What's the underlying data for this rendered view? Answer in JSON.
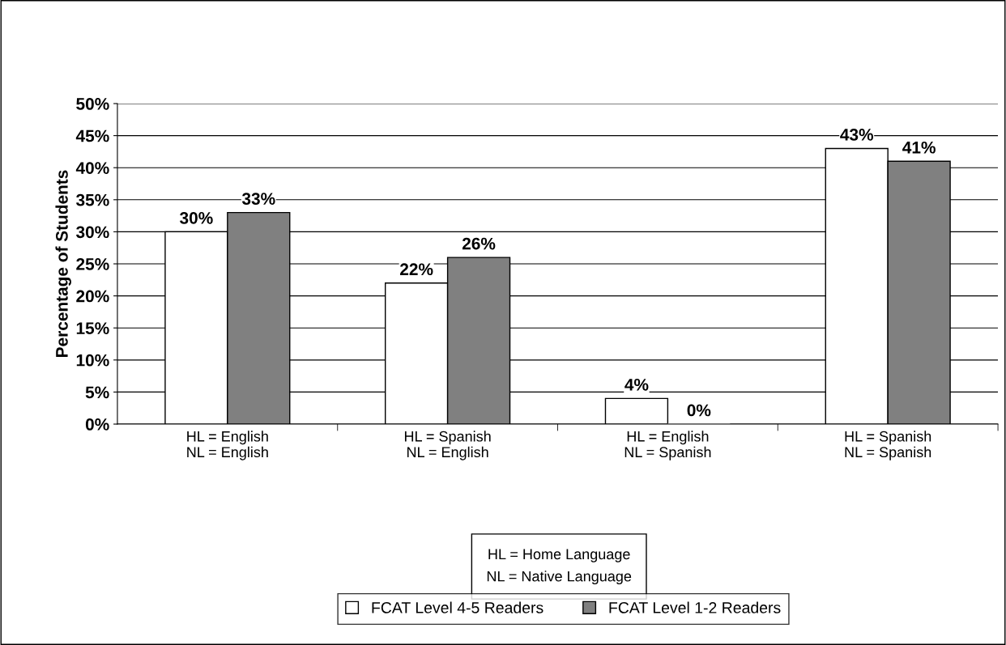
{
  "chart_data": {
    "type": "bar",
    "ylabel": "Percentage of Students",
    "categories": [
      "HL = English\nNL = English",
      "HL = Spanish\nNL = English",
      "HL = English\nNL = Spanish",
      "HL = Spanish\nNL = Spanish"
    ],
    "series": [
      {
        "name": "FCAT Level 4-5 Readers",
        "color": "#ffffff",
        "values": [
          30,
          22,
          4,
          43
        ]
      },
      {
        "name": "FCAT Level 1-2 Readers",
        "color": "#808080",
        "values": [
          33,
          26,
          0,
          41
        ]
      }
    ],
    "ylim": [
      0,
      50
    ],
    "yticks": [
      {
        "value": 0,
        "label": "0%"
      },
      {
        "value": 5,
        "label": "5%"
      },
      {
        "value": 10,
        "label": "10%"
      },
      {
        "value": 15,
        "label": "15%"
      },
      {
        "value": 20,
        "label": "20%"
      },
      {
        "value": 25,
        "label": "25%"
      },
      {
        "value": 30,
        "label": "30%"
      },
      {
        "value": 35,
        "label": "35%"
      },
      {
        "value": 40,
        "label": "40%"
      },
      {
        "value": 45,
        "label": "45%"
      },
      {
        "value": 50,
        "label": "50%"
      }
    ],
    "value_labels": [
      [
        "30%",
        "22%",
        "4%",
        "43%"
      ],
      [
        "33%",
        "26%",
        "0%",
        "41%"
      ]
    ],
    "annotations": [
      "HL = Home Language\nNL = Native Language"
    ],
    "grid": "y",
    "legend": "bottom"
  }
}
